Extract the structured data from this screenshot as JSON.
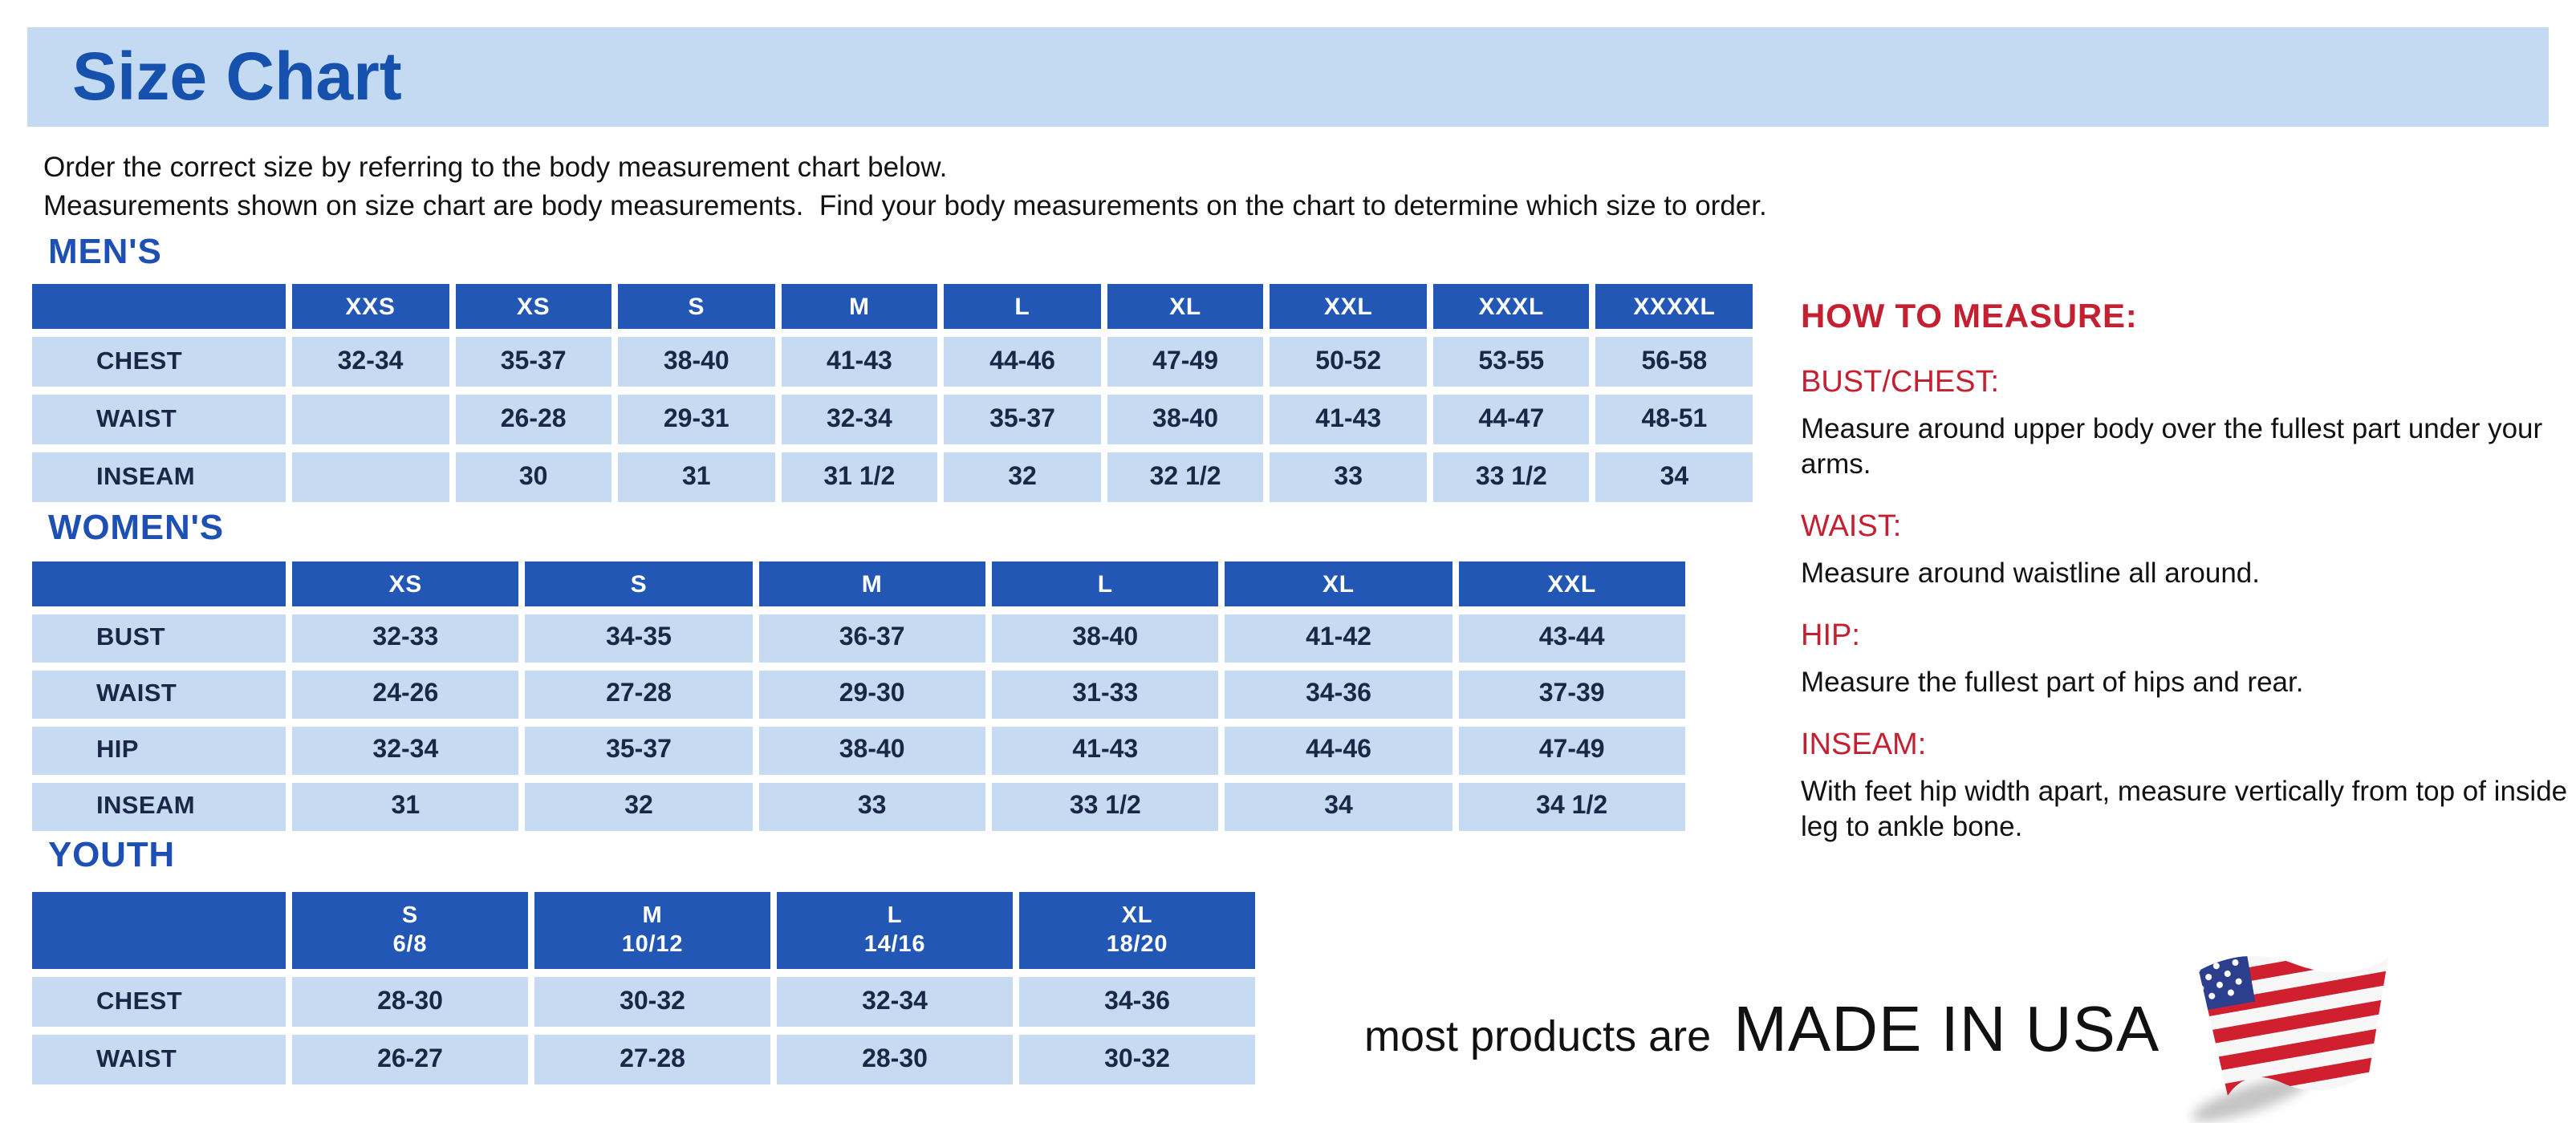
{
  "page": {
    "title": "Size Chart",
    "intro_line1": "Order the correct size by referring to the body measurement chart below.",
    "intro_line2": "Measurements shown on size chart are body measurements.  Find your body measurements on the chart to determine which size to order."
  },
  "colors": {
    "banner_blue": "#c4daf3",
    "title_blue": "#1751ae",
    "section_blue": "#1d50b2",
    "header_blue": "#2257b5",
    "cell_blue": "#c6daf2",
    "cell_text": "#1a2747",
    "accent_red": "#c32032",
    "body_black": "#121212"
  },
  "tables": {
    "mens": {
      "section_label": "MEN'S",
      "columns": [
        "XXS",
        "XS",
        "S",
        "M",
        "L",
        "XL",
        "XXL",
        "XXXL",
        "XXXXL"
      ],
      "rows": [
        {
          "label": "CHEST",
          "values": [
            "32-34",
            "35-37",
            "38-40",
            "41-43",
            "44-46",
            "47-49",
            "50-52",
            "53-55",
            "56-58"
          ]
        },
        {
          "label": "WAIST",
          "values": [
            "",
            "26-28",
            "29-31",
            "32-34",
            "35-37",
            "38-40",
            "41-43",
            "44-47",
            "48-51"
          ]
        },
        {
          "label": "INSEAM",
          "values": [
            "",
            "30",
            "31",
            "31 1/2",
            "32",
            "32 1/2",
            "33",
            "33 1/2",
            "34"
          ]
        }
      ]
    },
    "womens": {
      "section_label": "WOMEN'S",
      "columns": [
        "XS",
        "S",
        "M",
        "L",
        "XL",
        "XXL"
      ],
      "rows": [
        {
          "label": "BUST",
          "values": [
            "32-33",
            "34-35",
            "36-37",
            "38-40",
            "41-42",
            "43-44"
          ]
        },
        {
          "label": "WAIST",
          "values": [
            "24-26",
            "27-28",
            "29-30",
            "31-33",
            "34-36",
            "37-39"
          ]
        },
        {
          "label": "HIP",
          "values": [
            "32-34",
            "35-37",
            "38-40",
            "41-43",
            "44-46",
            "47-49"
          ]
        },
        {
          "label": "INSEAM",
          "values": [
            "31",
            "32",
            "33",
            "33 1/2",
            "34",
            "34 1/2"
          ]
        }
      ]
    },
    "youth": {
      "section_label": "YOUTH",
      "columns": [
        {
          "size": "S",
          "range": "6/8"
        },
        {
          "size": "M",
          "range": "10/12"
        },
        {
          "size": "L",
          "range": "14/16"
        },
        {
          "size": "XL",
          "range": "18/20"
        }
      ],
      "rows": [
        {
          "label": "CHEST",
          "values": [
            "28-30",
            "30-32",
            "32-34",
            "34-36"
          ]
        },
        {
          "label": "WAIST",
          "values": [
            "26-27",
            "27-28",
            "28-30",
            "30-32"
          ]
        }
      ]
    }
  },
  "how_to_measure": {
    "title": "HOW TO MEASURE:",
    "items": [
      {
        "heading": "BUST/CHEST:",
        "text": "Measure around upper body over the fullest part under your arms."
      },
      {
        "heading": "WAIST:",
        "text": "Measure around waistline all around."
      },
      {
        "heading": "HIP:",
        "text": "Measure the fullest part of hips and rear."
      },
      {
        "heading": "INSEAM:",
        "text": "With feet hip width apart, measure vertically from top of inside leg to ankle bone."
      }
    ]
  },
  "footer": {
    "prefix": "most products are",
    "emphasis": "MADE IN USA",
    "flag_icon": "us-flag-icon"
  }
}
